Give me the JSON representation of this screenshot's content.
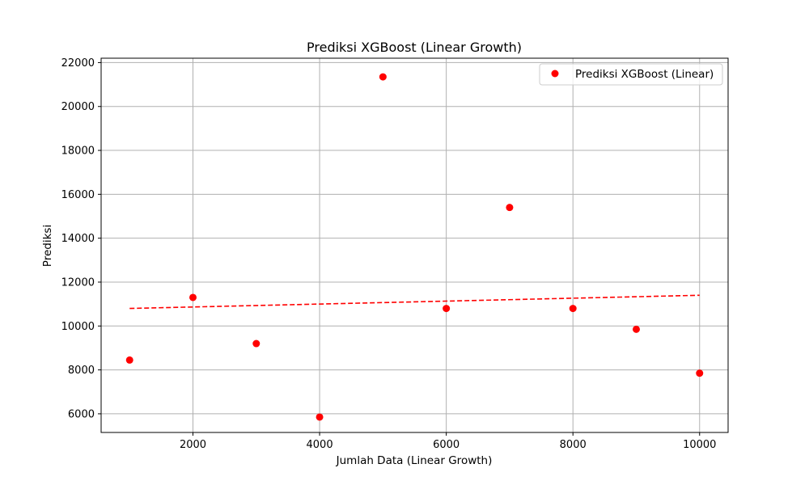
{
  "chart_data": {
    "type": "scatter",
    "title": "Prediksi XGBoost (Linear Growth)",
    "xlabel": "Jumlah Data (Linear Growth)",
    "ylabel": "Prediksi",
    "xlim": [
      550,
      10450
    ],
    "ylim": [
      5150,
      22200
    ],
    "xticks": [
      2000,
      4000,
      6000,
      8000,
      10000
    ],
    "yticks": [
      6000,
      8000,
      10000,
      12000,
      14000,
      16000,
      18000,
      20000,
      22000
    ],
    "grid": true,
    "legend_position": "top-right",
    "series": [
      {
        "name": "Prediksi XGBoost (Linear)",
        "kind": "points",
        "color": "#ff0000",
        "x": [
          1000,
          2000,
          3000,
          4000,
          5000,
          6000,
          7000,
          8000,
          9000,
          10000
        ],
        "y": [
          8450,
          11300,
          9200,
          5850,
          21350,
          10800,
          15400,
          10800,
          9850,
          7850
        ]
      },
      {
        "kind": "trend-line",
        "style": "dashed",
        "color": "#ff0000",
        "x": [
          1000,
          10000
        ],
        "y": [
          10800,
          11400
        ]
      }
    ]
  }
}
